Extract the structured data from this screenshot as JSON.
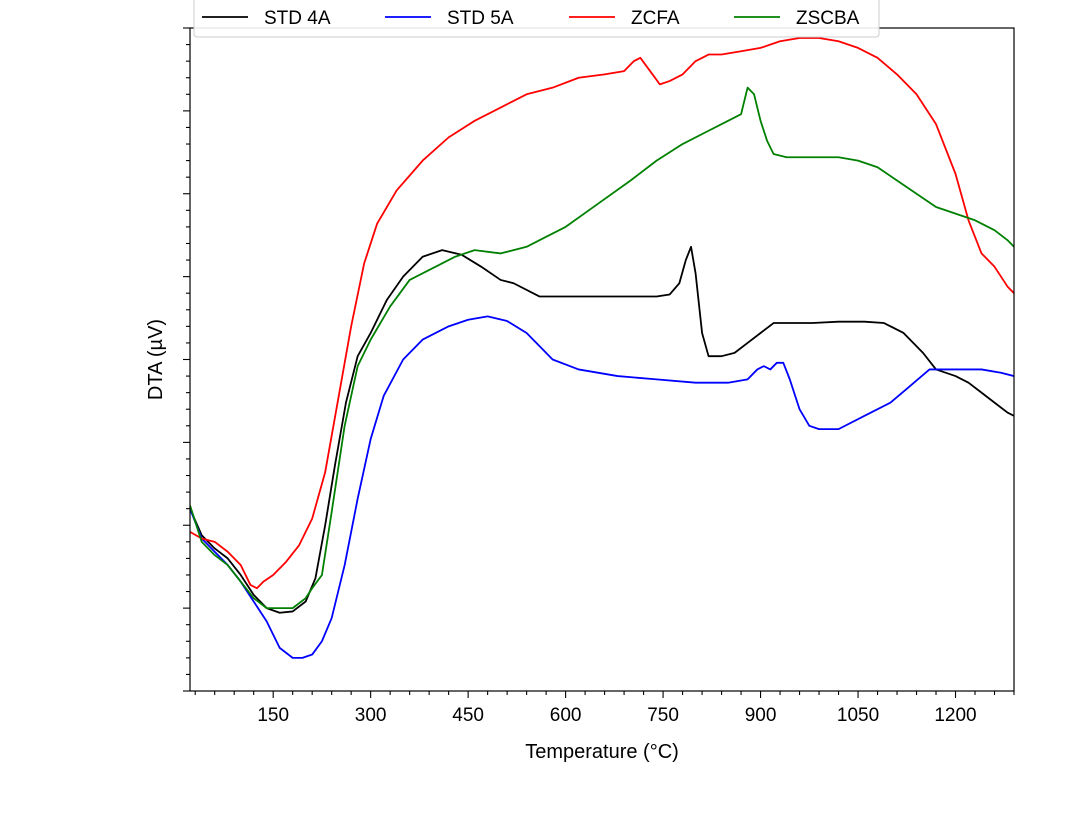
{
  "chart_data": {
    "type": "line",
    "title": "",
    "xlabel": "Temperature (°C)",
    "ylabel": "DTA (µV)",
    "xlim": [
      22,
      1290
    ],
    "ylim": [
      0,
      100
    ],
    "xticks": [
      150,
      300,
      450,
      600,
      750,
      900,
      1050,
      1200
    ],
    "y_tick_labels_shown": false,
    "grid": false,
    "legend": {
      "placement": "top-center",
      "columns": 4
    },
    "series": [
      {
        "name": "STD 4A",
        "color": "#000000",
        "points": [
          [
            22,
            27.5
          ],
          [
            40,
            23.5
          ],
          [
            60,
            21.5
          ],
          [
            80,
            20
          ],
          [
            100,
            17.5
          ],
          [
            120,
            14.5
          ],
          [
            140,
            12.5
          ],
          [
            160,
            11.8
          ],
          [
            180,
            12
          ],
          [
            200,
            13.5
          ],
          [
            215,
            17
          ],
          [
            230,
            25
          ],
          [
            245,
            34
          ],
          [
            262,
            43.5
          ],
          [
            280,
            50.5
          ],
          [
            300,
            54
          ],
          [
            325,
            59
          ],
          [
            350,
            62.5
          ],
          [
            380,
            65.5
          ],
          [
            410,
            66.5
          ],
          [
            440,
            65.8
          ],
          [
            470,
            64
          ],
          [
            500,
            62
          ],
          [
            520,
            61.5
          ],
          [
            560,
            59.5
          ],
          [
            600,
            59.5
          ],
          [
            650,
            59.5
          ],
          [
            700,
            59.5
          ],
          [
            740,
            59.5
          ],
          [
            760,
            59.8
          ],
          [
            775,
            61.5
          ],
          [
            785,
            65
          ],
          [
            793,
            67
          ],
          [
            800,
            63
          ],
          [
            810,
            54
          ],
          [
            820,
            50.5
          ],
          [
            840,
            50.5
          ],
          [
            860,
            51
          ],
          [
            880,
            52.5
          ],
          [
            900,
            54
          ],
          [
            920,
            55.5
          ],
          [
            940,
            55.5
          ],
          [
            980,
            55.5
          ],
          [
            1020,
            55.7
          ],
          [
            1060,
            55.7
          ],
          [
            1090,
            55.5
          ],
          [
            1120,
            54
          ],
          [
            1150,
            51
          ],
          [
            1170,
            48.5
          ],
          [
            1200,
            47.5
          ],
          [
            1220,
            46.5
          ],
          [
            1240,
            45
          ],
          [
            1260,
            43.5
          ],
          [
            1280,
            42
          ],
          [
            1290,
            41.5
          ]
        ]
      },
      {
        "name": "STD 5A",
        "color": "#0000ff",
        "points": [
          [
            22,
            27.5
          ],
          [
            40,
            23
          ],
          [
            60,
            21
          ],
          [
            80,
            19
          ],
          [
            100,
            16.5
          ],
          [
            120,
            13.5
          ],
          [
            140,
            10.5
          ],
          [
            160,
            6.5
          ],
          [
            180,
            5
          ],
          [
            195,
            5
          ],
          [
            210,
            5.5
          ],
          [
            225,
            7.5
          ],
          [
            240,
            11
          ],
          [
            260,
            19
          ],
          [
            280,
            29
          ],
          [
            300,
            38
          ],
          [
            320,
            44.5
          ],
          [
            350,
            50
          ],
          [
            380,
            53
          ],
          [
            420,
            55
          ],
          [
            450,
            56
          ],
          [
            480,
            56.5
          ],
          [
            510,
            55.8
          ],
          [
            540,
            54
          ],
          [
            560,
            52
          ],
          [
            580,
            50
          ],
          [
            620,
            48.5
          ],
          [
            680,
            47.5
          ],
          [
            740,
            47
          ],
          [
            800,
            46.5
          ],
          [
            850,
            46.5
          ],
          [
            880,
            47
          ],
          [
            895,
            48.5
          ],
          [
            905,
            49
          ],
          [
            915,
            48.5
          ],
          [
            925,
            49.5
          ],
          [
            935,
            49.5
          ],
          [
            945,
            47
          ],
          [
            960,
            42.5
          ],
          [
            975,
            40
          ],
          [
            990,
            39.5
          ],
          [
            1020,
            39.5
          ],
          [
            1060,
            41.5
          ],
          [
            1100,
            43.5
          ],
          [
            1130,
            46
          ],
          [
            1160,
            48.5
          ],
          [
            1200,
            48.5
          ],
          [
            1240,
            48.5
          ],
          [
            1270,
            48
          ],
          [
            1290,
            47.5
          ]
        ]
      },
      {
        "name": "ZCFA",
        "color": "#ff0000",
        "points": [
          [
            22,
            24
          ],
          [
            40,
            23
          ],
          [
            60,
            22.5
          ],
          [
            80,
            21
          ],
          [
            100,
            19
          ],
          [
            115,
            16
          ],
          [
            125,
            15.5
          ],
          [
            135,
            16.5
          ],
          [
            150,
            17.5
          ],
          [
            170,
            19.5
          ],
          [
            190,
            22
          ],
          [
            210,
            26
          ],
          [
            230,
            33
          ],
          [
            250,
            44
          ],
          [
            270,
            55
          ],
          [
            290,
            64.5
          ],
          [
            310,
            70.5
          ],
          [
            340,
            75.5
          ],
          [
            380,
            80
          ],
          [
            420,
            83.5
          ],
          [
            460,
            86
          ],
          [
            500,
            88
          ],
          [
            540,
            90
          ],
          [
            580,
            91
          ],
          [
            620,
            92.5
          ],
          [
            660,
            93
          ],
          [
            690,
            93.5
          ],
          [
            705,
            95
          ],
          [
            715,
            95.5
          ],
          [
            730,
            93.5
          ],
          [
            745,
            91.5
          ],
          [
            760,
            92
          ],
          [
            780,
            93
          ],
          [
            800,
            95
          ],
          [
            820,
            96
          ],
          [
            840,
            96
          ],
          [
            870,
            96.5
          ],
          [
            900,
            97
          ],
          [
            930,
            98
          ],
          [
            960,
            98.5
          ],
          [
            990,
            98.5
          ],
          [
            1020,
            98
          ],
          [
            1050,
            97
          ],
          [
            1080,
            95.5
          ],
          [
            1110,
            93
          ],
          [
            1140,
            90
          ],
          [
            1170,
            85.5
          ],
          [
            1200,
            78
          ],
          [
            1220,
            71
          ],
          [
            1240,
            66
          ],
          [
            1260,
            64
          ],
          [
            1280,
            61
          ],
          [
            1290,
            60
          ]
        ]
      },
      {
        "name": "ZSCBA",
        "color": "#008000",
        "points": [
          [
            22,
            28
          ],
          [
            40,
            22.5
          ],
          [
            60,
            20.5
          ],
          [
            80,
            19
          ],
          [
            100,
            16.5
          ],
          [
            120,
            14
          ],
          [
            140,
            12.5
          ],
          [
            160,
            12.5
          ],
          [
            180,
            12.5
          ],
          [
            200,
            14
          ],
          [
            210,
            15.5
          ],
          [
            225,
            17.5
          ],
          [
            240,
            27
          ],
          [
            260,
            40
          ],
          [
            280,
            49
          ],
          [
            300,
            53
          ],
          [
            330,
            58
          ],
          [
            360,
            62
          ],
          [
            400,
            64
          ],
          [
            430,
            65.5
          ],
          [
            460,
            66.5
          ],
          [
            500,
            66
          ],
          [
            540,
            67
          ],
          [
            570,
            68.5
          ],
          [
            600,
            70
          ],
          [
            650,
            73.5
          ],
          [
            700,
            77
          ],
          [
            740,
            80
          ],
          [
            780,
            82.5
          ],
          [
            820,
            84.5
          ],
          [
            850,
            86
          ],
          [
            870,
            87
          ],
          [
            880,
            91
          ],
          [
            890,
            90
          ],
          [
            900,
            86
          ],
          [
            910,
            83
          ],
          [
            920,
            81
          ],
          [
            940,
            80.5
          ],
          [
            980,
            80.5
          ],
          [
            1020,
            80.5
          ],
          [
            1050,
            80
          ],
          [
            1080,
            79
          ],
          [
            1110,
            77
          ],
          [
            1140,
            75
          ],
          [
            1170,
            73
          ],
          [
            1200,
            72
          ],
          [
            1230,
            71
          ],
          [
            1260,
            69.5
          ],
          [
            1280,
            68
          ],
          [
            1290,
            67
          ]
        ]
      }
    ]
  }
}
